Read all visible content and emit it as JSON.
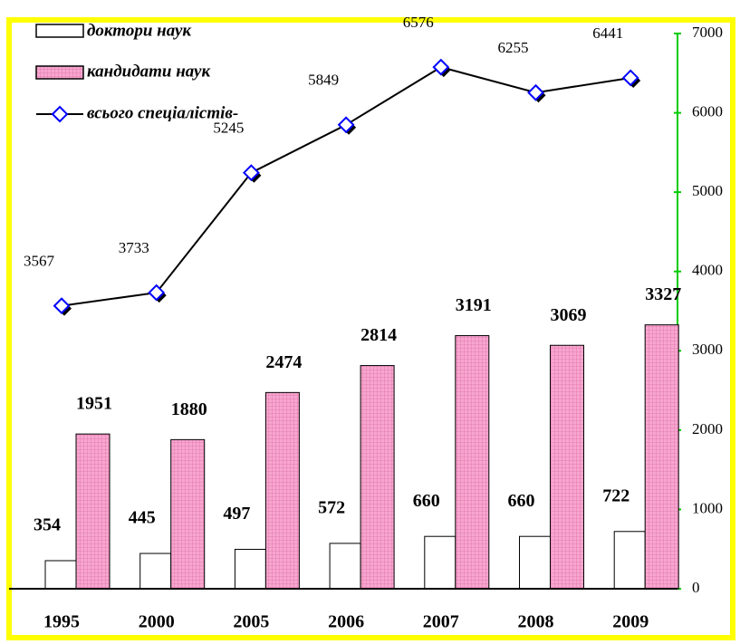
{
  "chart_data": {
    "type": "bar-line",
    "categories": [
      "1995",
      "2000",
      "2005",
      "2006",
      "2007",
      "2008",
      "2009"
    ],
    "series": [
      {
        "name": "доктори наук",
        "type": "bar",
        "color": "#ffffff",
        "values": [
          354,
          445,
          497,
          572,
          660,
          660,
          722
        ]
      },
      {
        "name": "кандидати наук",
        "type": "bar",
        "color": "#f7a6cf",
        "values": [
          1951,
          1880,
          2474,
          2814,
          3191,
          3069,
          3327
        ]
      },
      {
        "name": "всього спеціалістів-",
        "type": "line",
        "color": "#000000",
        "marker_color": "#0000ff",
        "values": [
          3567,
          3733,
          5245,
          5849,
          6576,
          6255,
          6441
        ]
      }
    ],
    "ylim": [
      0,
      7000
    ],
    "yticks": [
      0,
      1000,
      2000,
      3000,
      4000,
      5000,
      6000,
      7000
    ],
    "axis_color": "#00cc00",
    "frame_color": "#ffff00"
  }
}
